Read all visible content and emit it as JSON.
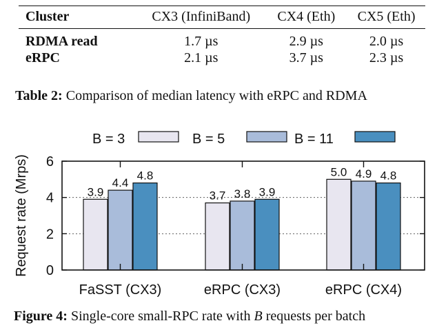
{
  "table": {
    "headers": [
      "Cluster",
      "CX3 (InfiniBand)",
      "CX4 (Eth)",
      "CX5 (Eth)"
    ],
    "rows": [
      {
        "label": "RDMA read",
        "values": [
          "1.7 µs",
          "2.9 µs",
          "2.0 µs"
        ]
      },
      {
        "label": "eRPC",
        "values": [
          "2.1 µs",
          "3.7 µs",
          "2.3 µs"
        ]
      }
    ],
    "caption": {
      "prefix": "Table 2:",
      "text": "Comparison of median latency with eRPC and RDMA"
    }
  },
  "figure": {
    "caption": {
      "prefix": "Figure 4:",
      "text_before": "Single-core small-RPC rate with",
      "italic": "B",
      "text_after": "requests per batch"
    }
  },
  "chart_data": {
    "type": "bar",
    "categories": [
      "FaSST (CX3)",
      "eRPC (CX3)",
      "eRPC (CX4)"
    ],
    "series": [
      {
        "name": "B = 3",
        "values": [
          3.9,
          3.7,
          5.0
        ],
        "color": "#e8e6f0"
      },
      {
        "name": "B = 5",
        "values": [
          4.4,
          3.8,
          4.9
        ],
        "color": "#a9bcda"
      },
      {
        "name": "B = 11",
        "values": [
          4.8,
          3.9,
          4.8
        ],
        "color": "#4a8fbf"
      }
    ],
    "data_labels": [
      [
        "3.9",
        "4.4",
        "4.8"
      ],
      [
        "3.7",
        "3.8",
        "3.9"
      ],
      [
        "5.0",
        "4.9",
        "4.8"
      ]
    ],
    "ylabel": "Request rate (Mrps)",
    "xlabel": "",
    "ylim": [
      0,
      6
    ],
    "yticks": [
      "0",
      "2",
      "4",
      "6"
    ],
    "grid": true,
    "legend_position": "top"
  }
}
